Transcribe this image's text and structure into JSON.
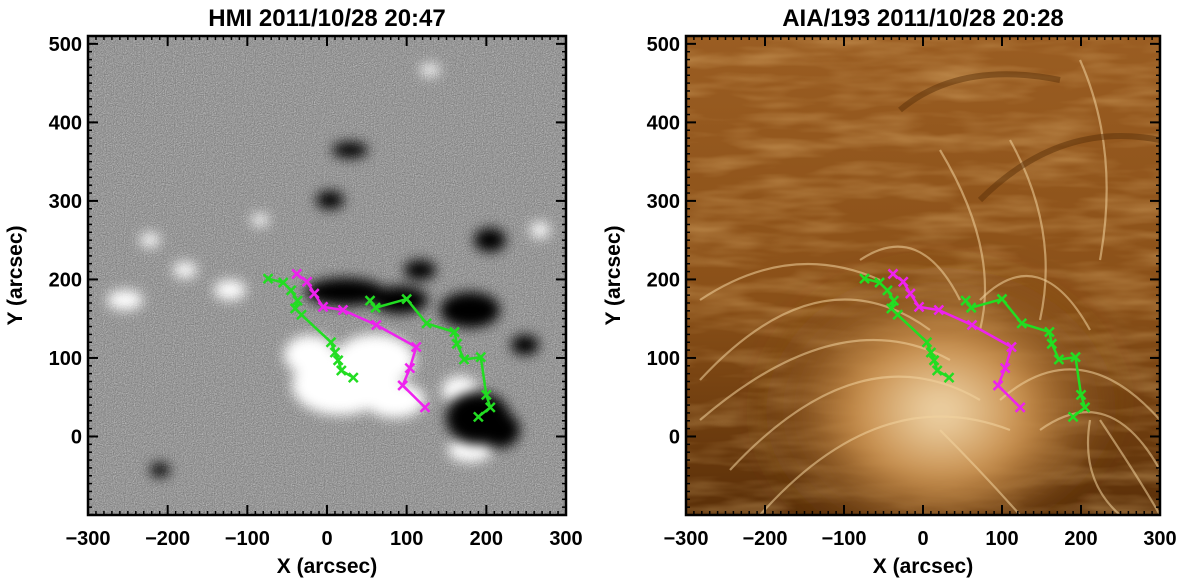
{
  "chart_data": [
    {
      "type": "scatter",
      "title": "HMI 2011/10/28 20:47",
      "xlabel": "X (arcsec)",
      "ylabel": "Y (arcsec)",
      "xlim": [
        -300,
        300
      ],
      "ylim": [
        -100,
        510
      ],
      "xticks": [
        "−300",
        "−200",
        "−100",
        "0",
        "100",
        "200",
        "300"
      ],
      "yticks": [
        "0",
        "100",
        "200",
        "300",
        "400",
        "500"
      ],
      "background": "HMI magnetogram, grayscale",
      "series": [
        {
          "color": "#22dd22",
          "marker": "x",
          "x": [
            -74,
            -55,
            -45,
            -37,
            -40,
            -32,
            5,
            10,
            14,
            18,
            33
          ],
          "y": [
            201,
            196,
            186,
            173,
            163,
            155,
            120,
            107,
            97,
            84,
            75
          ]
        },
        {
          "color": "#ee22ee",
          "marker": "x",
          "x": [
            -38,
            -25,
            -16,
            -5,
            20,
            62,
            112,
            104,
            95,
            123
          ],
          "y": [
            207,
            197,
            182,
            165,
            161,
            142,
            114,
            87,
            65,
            37
          ]
        },
        {
          "color": "#22dd22",
          "marker": "x",
          "x": [
            54,
            61,
            100,
            125,
            160,
            163,
            172,
            193,
            200,
            205,
            190
          ],
          "y": [
            173,
            164,
            175,
            144,
            133,
            118,
            98,
            101,
            53,
            37,
            25
          ]
        }
      ]
    },
    {
      "type": "scatter",
      "title": "AIA/193 2011/10/28 20:28",
      "xlabel": "X (arcsec)",
      "ylabel": "Y (arcsec)",
      "xlim": [
        -300,
        300
      ],
      "ylim": [
        -100,
        510
      ],
      "xticks": [
        "−300",
        "−200",
        "−100",
        "0",
        "100",
        "200",
        "300"
      ],
      "yticks": [
        "0",
        "100",
        "200",
        "300",
        "400",
        "500"
      ],
      "background": "AIA 193 EUV image, gold colormap",
      "series": [
        {
          "color": "#22dd22",
          "marker": "x",
          "x": [
            -74,
            -55,
            -45,
            -37,
            -40,
            -32,
            5,
            10,
            14,
            18,
            33
          ],
          "y": [
            201,
            196,
            186,
            173,
            163,
            155,
            120,
            107,
            97,
            84,
            75
          ]
        },
        {
          "color": "#ee22ee",
          "marker": "x",
          "x": [
            -38,
            -25,
            -16,
            -5,
            20,
            62,
            112,
            104,
            95,
            123
          ],
          "y": [
            207,
            197,
            182,
            165,
            161,
            142,
            114,
            87,
            65,
            37
          ]
        },
        {
          "color": "#22dd22",
          "marker": "x",
          "x": [
            54,
            61,
            100,
            125,
            160,
            163,
            172,
            193,
            200,
            205,
            190
          ],
          "y": [
            173,
            164,
            175,
            144,
            133,
            118,
            98,
            101,
            53,
            37,
            25
          ]
        }
      ]
    }
  ]
}
